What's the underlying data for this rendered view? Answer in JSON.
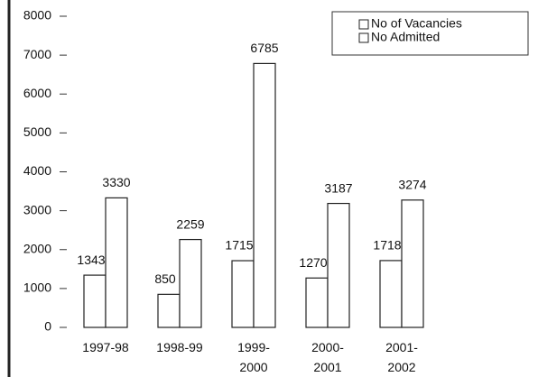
{
  "chart_data": {
    "type": "bar",
    "categories": [
      "1997-98",
      "1998-99",
      "1999-\n2000",
      "2000-\n2001",
      "2001-\n2002"
    ],
    "series": [
      {
        "name": "No  of Vacancies",
        "color": "#ffffff",
        "values": [
          1343,
          850,
          1715,
          1270,
          1718
        ]
      },
      {
        "name": "No  Admitted",
        "color": "#ffffff",
        "values": [
          3330,
          2259,
          6785,
          3187,
          3274
        ]
      }
    ],
    "ylim": [
      0,
      8000
    ],
    "yticks": [
      0,
      1000,
      2000,
      3000,
      4000,
      5000,
      6000,
      7000,
      8000
    ],
    "legend": "top-right"
  }
}
